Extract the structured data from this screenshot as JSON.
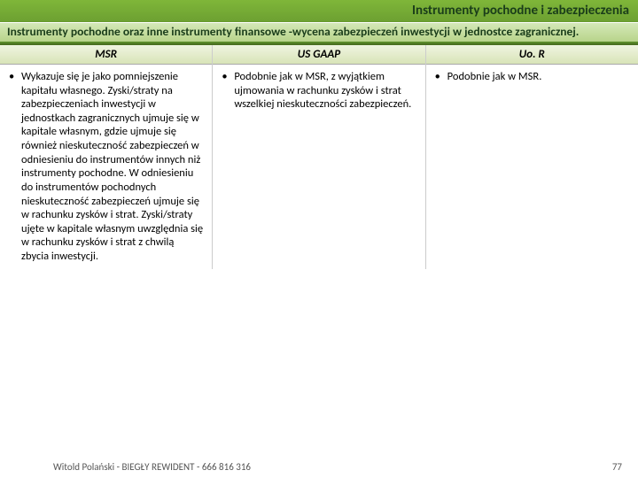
{
  "header": {
    "title": "Instrumenty pochodne i zabezpieczenia",
    "subtitle": "Instrumenty pochodne oraz inne instrumenty finansowe -wycena zabezpieczeń inwestycji w jednostce zagranicznej."
  },
  "columns": {
    "msr": {
      "label": "MSR",
      "text": "Wykazuje się je jako pomniejszenie kapitału własnego. Zyski/straty na zabezpieczeniach inwestycji w jednostkach zagranicznych ujmuje się w kapitale własnym, gdzie ujmuje się również nieskuteczność zabezpieczeń w odniesieniu do instrumentów innych niż instrumenty pochodne. W odniesieniu do instrumentów pochodnych nieskuteczność zabezpieczeń ujmuje się w rachunku zysków i strat. Zyski/straty ujęte w kapitale własnym uwzględnia się w rachunku zysków i strat z chwilą zbycia inwestycji."
    },
    "usgaap": {
      "label": "US GAAP",
      "text": "Podobnie jak w MSR, z wyjątkiem ujmowania w rachunku zysków i strat wszelkiej nieskuteczności zabezpieczeń."
    },
    "uor": {
      "label": "Uo. R",
      "text": "Podobnie jak w MSR."
    }
  },
  "footer": {
    "author": "Witold Polański - BIEGŁY REWIDENT - 666 816 316",
    "page": "77"
  }
}
